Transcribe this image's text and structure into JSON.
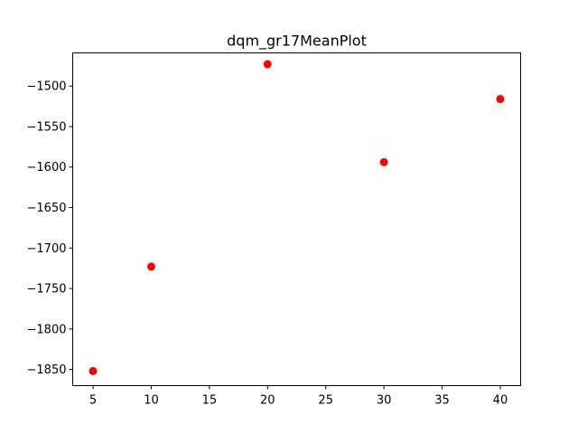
{
  "chart_data": {
    "type": "scatter",
    "title": "dqm_gr17MeanPlot",
    "xlabel": "",
    "ylabel": "",
    "xlim": [
      3.25,
      41.75
    ],
    "ylim": [
      -1870,
      -1459
    ],
    "x_ticks": [
      5,
      10,
      15,
      20,
      25,
      30,
      35,
      40
    ],
    "y_ticks": [
      -1850,
      -1800,
      -1750,
      -1700,
      -1650,
      -1600,
      -1550,
      -1500
    ],
    "x_tick_labels": [
      "5",
      "10",
      "15",
      "20",
      "25",
      "30",
      "35",
      "40"
    ],
    "y_tick_labels": [
      "−1850",
      "−1800",
      "−1750",
      "−1700",
      "−1650",
      "−1600",
      "−1550",
      "−1500"
    ],
    "grid": false,
    "series": [
      {
        "name": "dqm_gr17MeanPlot",
        "color": "#ff0000",
        "points": [
          {
            "x": 5,
            "y": -1852
          },
          {
            "x": 10,
            "y": -1723
          },
          {
            "x": 20,
            "y": -1473
          },
          {
            "x": 30,
            "y": -1594
          },
          {
            "x": 40,
            "y": -1516
          }
        ]
      }
    ]
  }
}
